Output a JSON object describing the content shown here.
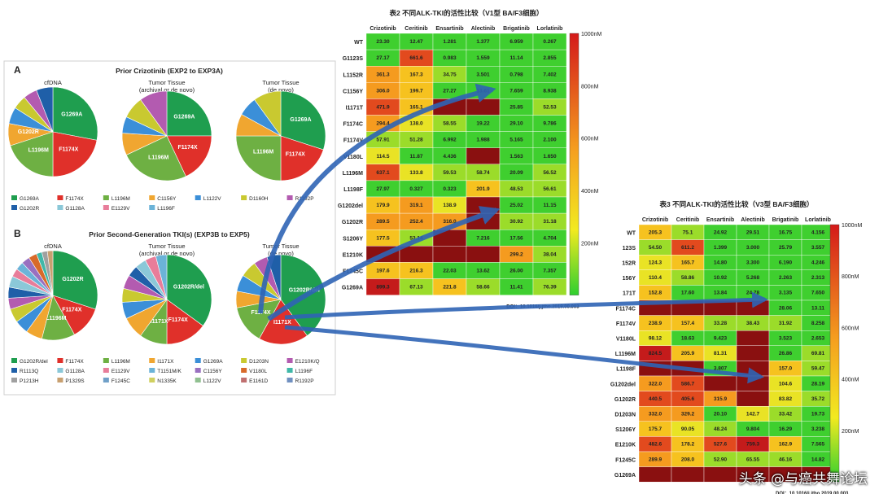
{
  "colors": {
    "green": "#33cc33",
    "yellow": "#f5e81f",
    "orange": "#f58f1f",
    "red": "#d92020",
    "darkred": "#8a1010",
    "arrow": "#2f64b5"
  },
  "footer": "头条 @与癌共舞论坛",
  "panel": {
    "A": {
      "letter": "A",
      "title": "Prior Crizotinib (EXP2 to EXP3A)",
      "cols": [
        "cfDNA",
        "Tumor Tissue\n(archival or de novo)",
        "Tumor Tissue\n(de novo)"
      ],
      "legend": [
        "G1269A",
        "F1174X",
        "L1196M",
        "C1156Y",
        "L1122V",
        "D1160H",
        "R1192P",
        "G1202R",
        "G1128A",
        "E1129V",
        "L1196F"
      ],
      "pies": [
        {
          "labels": [
            "G1269A",
            "F1174X",
            "L1196M",
            "G1202R"
          ],
          "values": [
            28,
            22,
            20,
            8,
            6,
            5,
            5,
            6
          ]
        },
        {
          "labels": [
            "G1269A",
            "F1174X",
            "L1196M"
          ],
          "values": [
            25,
            18,
            25,
            8,
            6,
            8,
            10
          ]
        },
        {
          "labels": [
            "G1269A",
            "F1174X",
            "L1196M"
          ],
          "values": [
            30,
            20,
            25,
            8,
            7,
            10
          ]
        }
      ]
    },
    "B": {
      "letter": "B",
      "title": "Prior Second-Generation TKI(s) (EXP3B to EXP5)",
      "cols": [
        "cfDNA",
        "Tumor Tissue\n(archival or de novo)",
        "Tumor Tissue\n(de novo)"
      ],
      "legend": [
        "G1202R/del",
        "F1174X",
        "L1196M",
        "I1171X",
        "G1269A",
        "D1203N",
        "E1210K/Q",
        "R1113Q",
        "G1128A",
        "E1129V",
        "T1151M/K",
        "C1156Y",
        "V1180L",
        "L1196F",
        "P1213H",
        "P1329S",
        "F1245C",
        "N1335K",
        "L1122V",
        "E1161D",
        "R1192P"
      ],
      "pies": [
        {
          "labels": [
            "G1202R",
            "F1174X",
            "L1196M"
          ],
          "values": [
            30,
            12,
            12,
            6,
            5,
            5,
            4,
            4,
            4,
            3,
            3,
            3,
            3,
            2,
            2,
            2
          ]
        },
        {
          "labels": [
            "G1202R/del",
            "F1174X",
            "I1171X"
          ],
          "values": [
            35,
            15,
            10,
            8,
            6,
            5,
            5,
            4,
            4,
            4,
            4
          ]
        },
        {
          "labels": [
            "G1202R/del",
            "I1171X",
            "F1174X"
          ],
          "values": [
            40,
            18,
            14,
            6,
            6,
            6,
            5,
            5
          ]
        }
      ]
    }
  },
  "chart_data": [
    {
      "type": "heatmap",
      "title": "表2 不同ALK-TKI的活性比较（V1型 BA/F3细胞）",
      "doi": "DOI：10.1016/j.jtho.2019.00.003",
      "columns": [
        "Crizotinib",
        "Ceritinib",
        "Ensartinib",
        "Alectinib",
        "Brigatinib",
        "Lorlatinib"
      ],
      "rows": [
        "WT",
        "G1123S",
        "L1152R",
        "C1156Y",
        "I1171T",
        "F1174C",
        "F1174V",
        "V1180L",
        "L1196M",
        "L1198F",
        "G1202del",
        "G1202R",
        "S1206Y",
        "E1210K",
        "F1245C",
        "G1269A"
      ],
      "values": [
        [
          "23.30",
          "12.47",
          "1.281",
          "1.377",
          "6.959",
          "0.267"
        ],
        [
          "27.17",
          "661.6",
          "0.983",
          "1.559",
          "11.14",
          "2.855"
        ],
        [
          "361.3",
          "167.3",
          "34.75",
          "3.501",
          "0.798",
          "7.402"
        ],
        [
          "306.0",
          "199.7",
          "27.27",
          "13.61",
          "7.659",
          "8.938"
        ],
        [
          "471.9",
          "165.1",
          "",
          "",
          "25.85",
          "52.53"
        ],
        [
          "294.4",
          "138.0",
          "58.55",
          "19.22",
          "29.10",
          "9.786"
        ],
        [
          "57.91",
          "51.28",
          "6.992",
          "1.988",
          "5.165",
          "2.100"
        ],
        [
          "114.5",
          "11.87",
          "4.436",
          "",
          "1.563",
          "1.650"
        ],
        [
          "637.1",
          "133.8",
          "59.53",
          "58.74",
          "20.09",
          "56.52"
        ],
        [
          "27.97",
          "0.327",
          "0.323",
          "201.9",
          "48.53",
          "56.61"
        ],
        [
          "179.9",
          "319.1",
          "138.9",
          "",
          "25.02",
          "11.15"
        ],
        [
          "289.5",
          "252.4",
          "316.0",
          "",
          "30.92",
          "31.18"
        ],
        [
          "177.5",
          "53.14",
          "",
          "7.216",
          "17.56",
          "4.704"
        ],
        [
          "",
          "",
          "",
          "",
          "299.2",
          "38.04"
        ],
        [
          "197.6",
          "216.3",
          "22.03",
          "13.62",
          "26.00",
          "7.357"
        ],
        [
          "899.3",
          "67.13",
          "221.8",
          "58.66",
          "11.41",
          "76.39"
        ]
      ],
      "colorbar": {
        "ticks": [
          "1000nM",
          "800nM",
          "600nM",
          "400nM",
          "200nM"
        ]
      }
    },
    {
      "type": "heatmap",
      "title": "表3 不同ALK-TKI的活性比较（V3型 BA/F3细胞）",
      "doi": "DOI：10.1016/j.jtho.2019.00.003",
      "columns": [
        "Crizotinib",
        "Ceritinib",
        "Ensartinib",
        "Alectinib",
        "Brigatinib",
        "Lorlatinib"
      ],
      "rows": [
        "WT",
        "123S",
        "152R",
        "156Y",
        "171T",
        "F1174C",
        "F1174V",
        "V1180L",
        "L1196M",
        "L1198F",
        "G1202del",
        "G1202R",
        "D1203N",
        "S1206Y",
        "E1210K",
        "F1245C",
        "G1269A"
      ],
      "values": [
        [
          "205.3",
          "75.1",
          "24.92",
          "29.51",
          "16.75",
          "4.156"
        ],
        [
          "54.50",
          "611.2",
          "1.399",
          "3.000",
          "25.79",
          "3.557"
        ],
        [
          "124.3",
          "165.7",
          "14.80",
          "3.300",
          "6.190",
          "4.246"
        ],
        [
          "110.4",
          "58.86",
          "10.92",
          "5.268",
          "2.263",
          "2.313"
        ],
        [
          "152.8",
          "17.60",
          "13.84",
          "24.78",
          "3.135",
          "7.650"
        ],
        [
          "",
          "",
          "",
          "",
          "28.06",
          "13.11"
        ],
        [
          "238.9",
          "157.4",
          "33.28",
          "38.43",
          "31.92",
          "8.258"
        ],
        [
          "98.12",
          "18.63",
          "9.423",
          "",
          "3.523",
          "2.653"
        ],
        [
          "824.5",
          "205.9",
          "81.31",
          "",
          "26.86",
          "69.81"
        ],
        [
          "",
          "",
          "3.807",
          "",
          "157.0",
          "59.47"
        ],
        [
          "322.0",
          "586.7",
          "",
          "",
          "104.6",
          "28.19"
        ],
        [
          "440.5",
          "405.6",
          "315.9",
          "",
          "83.82",
          "35.72"
        ],
        [
          "332.0",
          "329.2",
          "20.10",
          "142.7",
          "33.42",
          "19.73"
        ],
        [
          "175.7",
          "90.05",
          "48.24",
          "9.804",
          "16.29",
          "3.238"
        ],
        [
          "482.6",
          "178.2",
          "527.6",
          "759.3",
          "162.9",
          "7.565"
        ],
        [
          "289.9",
          "208.0",
          "52.90",
          "65.55",
          "46.16",
          "14.82"
        ],
        [
          "",
          "",
          "",
          "",
          "",
          ""
        ]
      ],
      "colorbar": {
        "ticks": [
          "1000nM",
          "800nM",
          "600nM",
          "400nM",
          "200nM"
        ]
      }
    }
  ]
}
